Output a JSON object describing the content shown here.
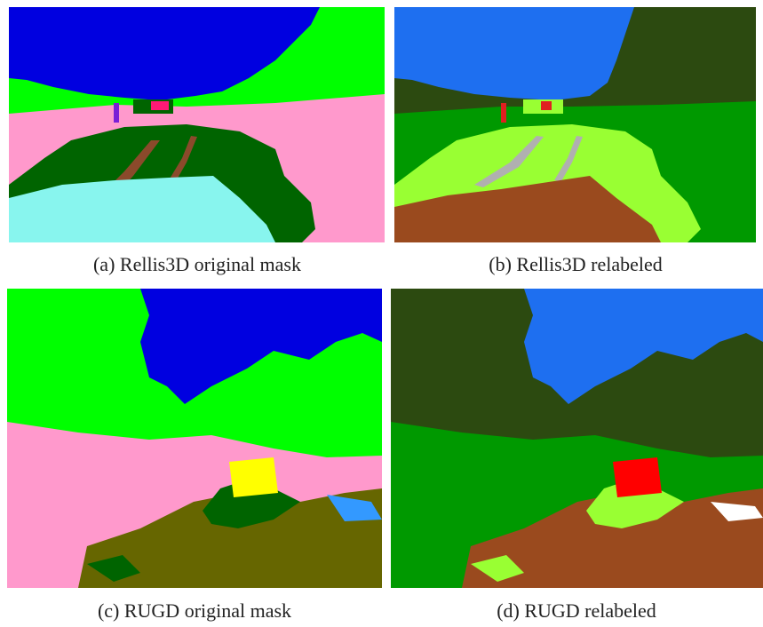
{
  "panels": [
    {
      "caption": "(a) Rellis3D original mask"
    },
    {
      "caption": "(b) Rellis3D relabeled"
    },
    {
      "caption": "(c) RUGD original mask"
    },
    {
      "caption": "(d) RUGD relabeled"
    }
  ]
}
